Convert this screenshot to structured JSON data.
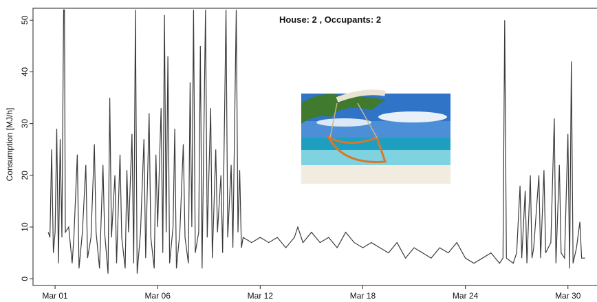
{
  "chart_data": {
    "type": "line",
    "title": "House: 2 , Occupants: 2",
    "ylabel": "Consumption [MJ/h]",
    "color": "#3a3a3a",
    "xlim": [
      -1.29,
      31.7
    ],
    "xticks": [
      {
        "value": 0,
        "label": "Mar 01"
      },
      {
        "value": 6,
        "label": "Mar 06"
      },
      {
        "value": 12,
        "label": "Mar 12"
      },
      {
        "value": 18,
        "label": "Mar 18"
      },
      {
        "value": 24,
        "label": "Mar 24"
      },
      {
        "value": 30,
        "label": "Mar 30"
      }
    ],
    "ylim": [
      -1.3,
      52.3
    ],
    "yticks": [
      0,
      10,
      20,
      30,
      40,
      50
    ],
    "x": [
      -0.4,
      -0.3,
      -0.2,
      -0.1,
      0,
      0.1,
      0.2,
      0.3,
      0.4,
      0.5,
      0.55,
      0.6,
      0.8,
      1.0,
      1.1,
      1.3,
      1.4,
      1.6,
      1.8,
      1.9,
      2.1,
      2.3,
      2.4,
      2.6,
      2.8,
      2.9,
      3.1,
      3.2,
      3.3,
      3.5,
      3.6,
      3.8,
      3.9,
      4.1,
      4.2,
      4.3,
      4.5,
      4.6,
      4.7,
      4.8,
      5.0,
      5.2,
      5.3,
      5.5,
      5.6,
      5.8,
      5.9,
      6.0,
      6.2,
      6.3,
      6.4,
      6.5,
      6.6,
      6.7,
      6.9,
      7.0,
      7.1,
      7.3,
      7.5,
      7.6,
      7.8,
      7.9,
      8.0,
      8.1,
      8.2,
      8.4,
      8.5,
      8.6,
      8.8,
      8.9,
      9.1,
      9.2,
      9.4,
      9.5,
      9.7,
      9.8,
      10.0,
      10.1,
      10.3,
      10.4,
      10.6,
      10.7,
      10.8,
      10.9,
      11.0,
      11.5,
      12,
      12.5,
      13,
      13.5,
      14,
      14.2,
      14.5,
      15,
      15.5,
      16,
      16.5,
      17,
      17.5,
      18,
      18.5,
      19,
      19.5,
      20,
      20.5,
      21,
      21.5,
      22,
      22.5,
      23,
      23.5,
      24,
      24.5,
      25,
      25.5,
      26,
      26.2,
      26.3,
      26.4,
      26.8,
      27,
      27.2,
      27.3,
      27.5,
      27.6,
      27.8,
      27.9,
      28.0,
      28.3,
      28.4,
      28.6,
      28.7,
      29,
      29.2,
      29.3,
      29.5,
      29.6,
      29.8,
      30.0,
      30.1,
      30.2,
      30.3,
      30.5,
      30.7,
      30.8,
      31.0
    ],
    "values": [
      9,
      8,
      25,
      5,
      9,
      29,
      3,
      27,
      8,
      52,
      52,
      9,
      10,
      3,
      8,
      24,
      2,
      9,
      22,
      4,
      8,
      26,
      9,
      2,
      22,
      9,
      1,
      35,
      8,
      20,
      3,
      24,
      8,
      2,
      21,
      9,
      28,
      3,
      52,
      1,
      9,
      27,
      4,
      32,
      8,
      2,
      24,
      10,
      33,
      5,
      51,
      9,
      43,
      3,
      10,
      29,
      2,
      9,
      26,
      8,
      3,
      38,
      10,
      52,
      5,
      9,
      45,
      2,
      52,
      8,
      33,
      4,
      25,
      9,
      20,
      5,
      52,
      8,
      22,
      6,
      52,
      9,
      21,
      6,
      8,
      7,
      8,
      7,
      8,
      6,
      8,
      10,
      7,
      9,
      7,
      8,
      6,
      9,
      7,
      6,
      7,
      6,
      5,
      7,
      4,
      6,
      5,
      4,
      6,
      5,
      7,
      4,
      3,
      4,
      5,
      3,
      4,
      50,
      4,
      3,
      5,
      18,
      4,
      17,
      3,
      20,
      4,
      6,
      20,
      4,
      21,
      5,
      7,
      31,
      3,
      22,
      5,
      4,
      28,
      2,
      42,
      3,
      6,
      11,
      4,
      4
    ]
  }
}
